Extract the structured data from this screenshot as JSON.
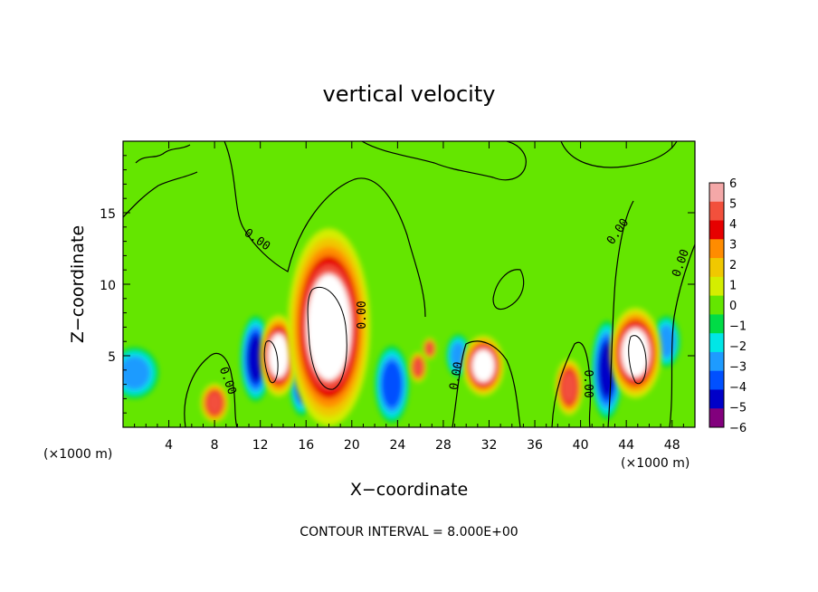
{
  "chart_data": {
    "type": "heatmap",
    "title": "vertical velocity",
    "xlabel": "X−coordinate",
    "ylabel": "Z−coordinate",
    "x_unit_label": "(×1000 m)",
    "x_unit_label_right": "(×1000 m)",
    "xlim": [
      0,
      50
    ],
    "ylim": [
      0,
      20
    ],
    "x_ticks": [
      "4",
      "8",
      "12",
      "16",
      "20",
      "24",
      "28",
      "32",
      "36",
      "40",
      "44",
      "48"
    ],
    "x_tick_values": [
      4,
      8,
      12,
      16,
      20,
      24,
      28,
      32,
      36,
      40,
      44,
      48
    ],
    "y_ticks": [
      "5",
      "10",
      "15"
    ],
    "y_tick_values": [
      5,
      10,
      15
    ],
    "contour_label": "0.00",
    "footer": "CONTOUR INTERVAL = 8.000E+00",
    "colorbar": {
      "labels": [
        "6",
        "5",
        "4",
        "3",
        "2",
        "1",
        "0",
        "−1",
        "−2",
        "−3",
        "−4",
        "−5",
        "−6"
      ],
      "colors": [
        "#f4a8a8",
        "#f2503c",
        "#e60000",
        "#ff8c00",
        "#f0c800",
        "#d4ee00",
        "#64e600",
        "#00dc46",
        "#00e6e6",
        "#1e9bff",
        "#0050ff",
        "#0000c8",
        "#82007d"
      ]
    },
    "features": [
      {
        "kind": "updraft",
        "x": 18,
        "z": 7,
        "rx": 2.4,
        "rz": 4.6,
        "amplitude": 6
      },
      {
        "kind": "updraft",
        "x": 13.6,
        "z": 5,
        "rx": 1.1,
        "rz": 1.9,
        "amplitude": 5.6
      },
      {
        "kind": "updraft",
        "x": 31.5,
        "z": 4.3,
        "rx": 1.2,
        "rz": 1.4,
        "amplitude": 5.6
      },
      {
        "kind": "updraft",
        "x": 44.8,
        "z": 5.2,
        "rx": 1.5,
        "rz": 2.1,
        "amplitude": 6
      },
      {
        "kind": "updraft",
        "x": 8,
        "z": 1.7,
        "rx": 0.8,
        "rz": 0.9,
        "amplitude": 4.2
      },
      {
        "kind": "updraft",
        "x": 39,
        "z": 2.8,
        "rx": 0.8,
        "rz": 1.3,
        "amplitude": 5
      },
      {
        "kind": "updraft",
        "x": 26.8,
        "z": 5.5,
        "rx": 0.4,
        "rz": 0.5,
        "amplitude": 5
      },
      {
        "kind": "updraft",
        "x": 25.8,
        "z": 4.2,
        "rx": 0.5,
        "rz": 0.7,
        "amplitude": 5
      },
      {
        "kind": "downdraft",
        "x": 11.6,
        "z": 4.8,
        "rx": 0.9,
        "rz": 2.0,
        "amplitude": -4.5
      },
      {
        "kind": "downdraft",
        "x": 15.6,
        "z": 3.2,
        "rx": 0.7,
        "rz": 1.6,
        "amplitude": -3.5
      },
      {
        "kind": "downdraft",
        "x": 23.5,
        "z": 3.0,
        "rx": 1.0,
        "rz": 1.8,
        "amplitude": -4
      },
      {
        "kind": "downdraft",
        "x": 42.3,
        "z": 4.0,
        "rx": 0.9,
        "rz": 2.3,
        "amplitude": -4.5
      },
      {
        "kind": "downdraft",
        "x": 47.5,
        "z": 6.0,
        "rx": 0.8,
        "rz": 1.2,
        "amplitude": -3
      },
      {
        "kind": "downdraft",
        "x": 1.0,
        "z": 3.8,
        "rx": 1.4,
        "rz": 1.2,
        "amplitude": -3
      },
      {
        "kind": "downdraft",
        "x": 29.3,
        "z": 5.0,
        "rx": 0.7,
        "rz": 1.0,
        "amplitude": -3
      }
    ]
  }
}
